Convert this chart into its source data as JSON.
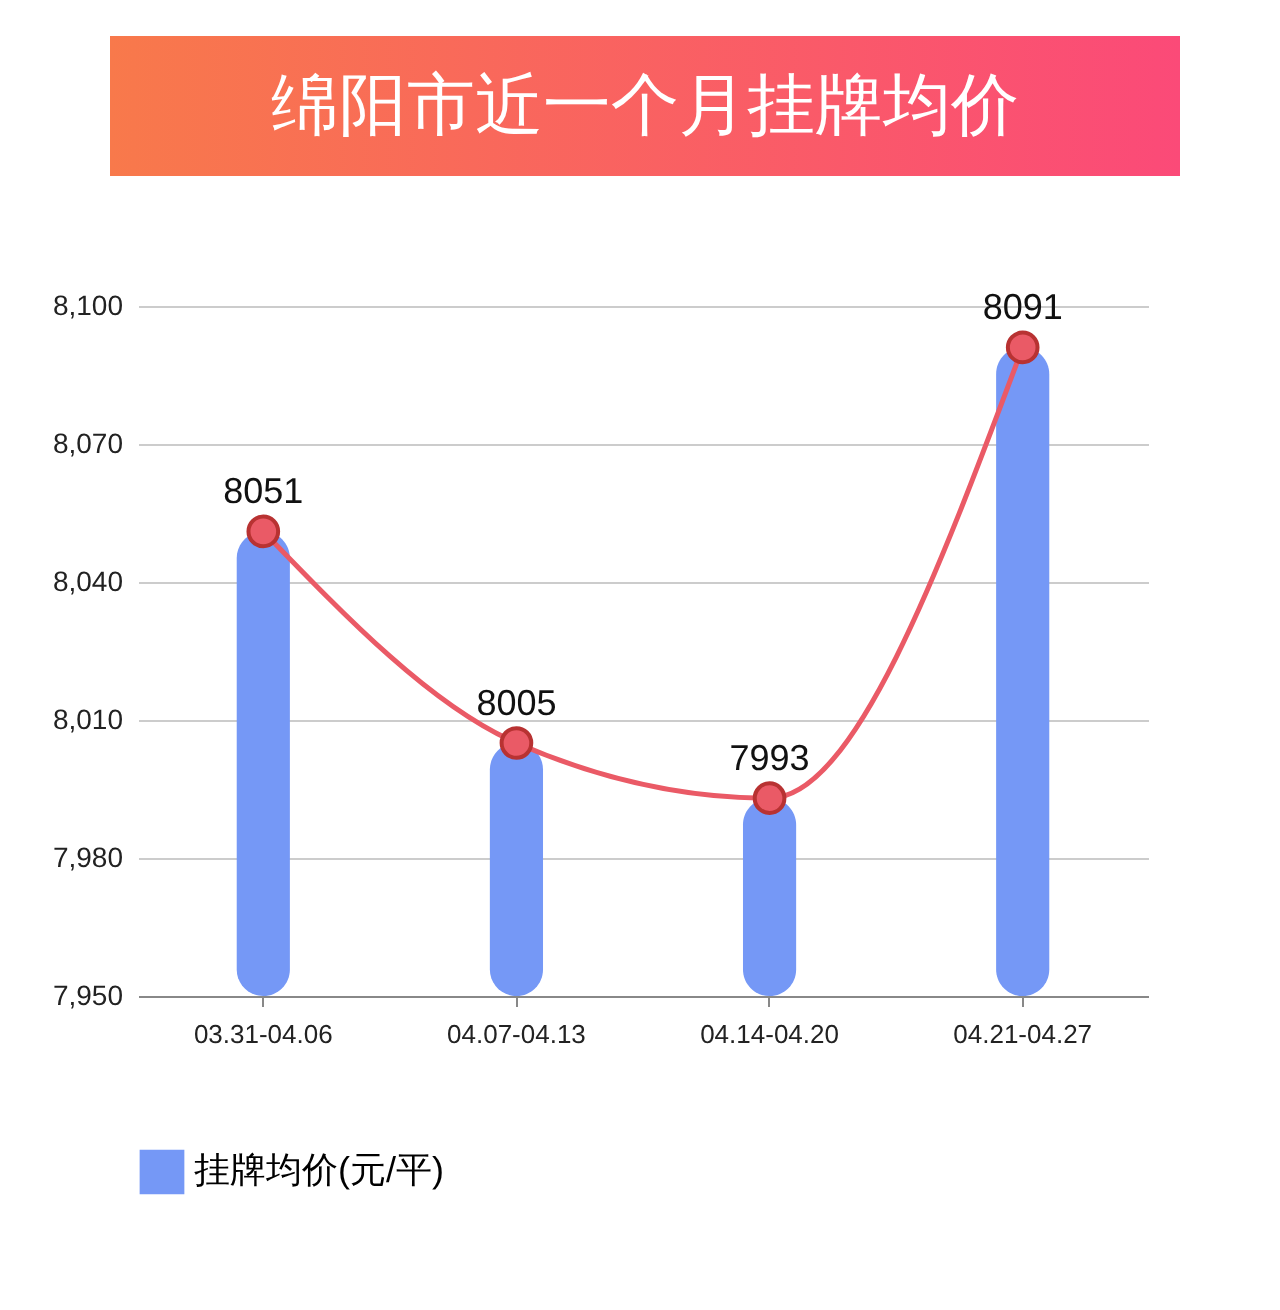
{
  "chart_data": {
    "type": "bar",
    "title": "绵阳市近一个月挂牌均价",
    "categories": [
      "03.31-04.06",
      "04.07-04.13",
      "04.14-04.20",
      "04.21-04.27"
    ],
    "series": [
      {
        "name": "挂牌均价(元/平)",
        "color": "#7598f6",
        "values": [
          8051,
          8005,
          7993,
          8091
        ]
      },
      {
        "type": "line",
        "color": "#ea5a66",
        "values": [
          8051,
          8005,
          7993,
          8091
        ],
        "value_labels": [
          "8051",
          "8005",
          "7993",
          "8091"
        ]
      }
    ],
    "ylim": [
      7950,
      8100
    ],
    "yticks": [
      {
        "value": 7950,
        "label": "7,950"
      },
      {
        "value": 7980,
        "label": "7,980"
      },
      {
        "value": 8010,
        "label": "8,010"
      },
      {
        "value": 8040,
        "label": "8,040"
      },
      {
        "value": 8070,
        "label": "8,070"
      },
      {
        "value": 8100,
        "label": "8,100"
      }
    ],
    "grid": "y",
    "legend": "bottom",
    "marker": "circle",
    "line_style": "solid"
  }
}
